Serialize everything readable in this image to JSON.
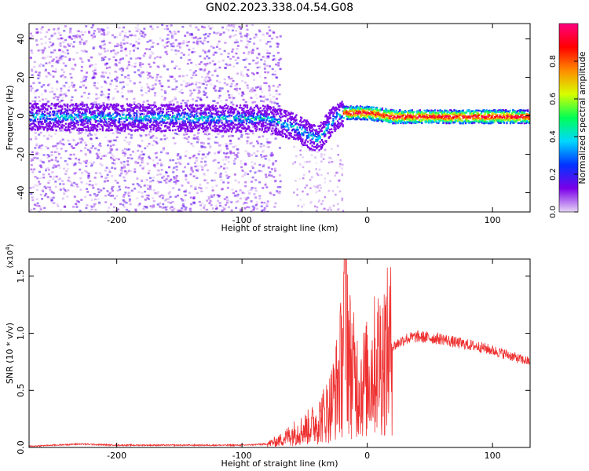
{
  "figure": {
    "title": "GN02.2023.338.04.54.G08"
  },
  "chart_data": [
    {
      "type": "heatmap",
      "xlabel": "Height of straight line (km)",
      "ylabel": "Frequency (Hz)",
      "xlim": [
        -270,
        130
      ],
      "ylim": [
        -50,
        48
      ],
      "xticks": [
        -200,
        -100,
        0,
        100
      ],
      "yticks": [
        -40,
        -20,
        0,
        20,
        40
      ],
      "colorbar": {
        "label": "Normalized spectral amplitude",
        "range": [
          0.0,
          1.0
        ],
        "ticks": [
          0.0,
          0.2,
          0.4,
          0.6,
          0.8
        ],
        "tick_labels": [
          "0.0",
          "0.2",
          "0.4",
          "0.6",
          "0.8"
        ],
        "colors": [
          "#e6d5f5",
          "#7b00e8",
          "#0033ff",
          "#00d8ff",
          "#00ff55",
          "#d6ff00",
          "#ff8c00",
          "#ff0000",
          "#ff0080"
        ]
      },
      "ridge": {
        "description_points": [
          {
            "x": -270,
            "y": 0
          },
          {
            "x": -80,
            "y": -1
          },
          {
            "x": -60,
            "y": -5
          },
          {
            "x": -40,
            "y": -12
          },
          {
            "x": -30,
            "y": -3
          },
          {
            "x": -20,
            "y": 2
          },
          {
            "x": 0,
            "y": 2
          },
          {
            "x": 20,
            "y": 0
          },
          {
            "x": 130,
            "y": 0
          }
        ]
      }
    },
    {
      "type": "line",
      "xlabel": "Height of straight line (km)",
      "ylabel": "SNR (10 * v/v)",
      "y_multiplier": "(x10",
      "y_multiplier_exp": "4",
      "y_multiplier_close": ")",
      "xlim": [
        -270,
        130
      ],
      "ylim": [
        0.0,
        1.65
      ],
      "xticks": [
        -200,
        -100,
        0,
        100
      ],
      "yticks": [
        0.0,
        0.5,
        1.0,
        1.5
      ],
      "ytick_labels": [
        "0.0",
        "0.5",
        "1.0",
        "1.5"
      ],
      "series": [
        {
          "color": "#ee3030",
          "x": [
            -270,
            -250,
            -230,
            -200,
            -150,
            -100,
            -80,
            -70,
            -60,
            -50,
            -40,
            -30,
            -25,
            -20,
            -17,
            -15,
            -10,
            -5,
            0,
            5,
            10,
            15,
            20,
            30,
            40,
            50,
            60,
            70,
            80,
            90,
            100,
            110,
            120,
            130
          ],
          "y": [
            0.01,
            0.02,
            0.03,
            0.02,
            0.02,
            0.02,
            0.03,
            0.06,
            0.12,
            0.16,
            0.22,
            0.35,
            0.5,
            0.75,
            1.65,
            0.8,
            0.6,
            0.55,
            0.6,
            0.7,
            0.78,
            0.82,
            0.88,
            0.95,
            0.97,
            0.96,
            0.95,
            0.92,
            0.9,
            0.88,
            0.85,
            0.82,
            0.78,
            0.75
          ]
        }
      ]
    }
  ]
}
